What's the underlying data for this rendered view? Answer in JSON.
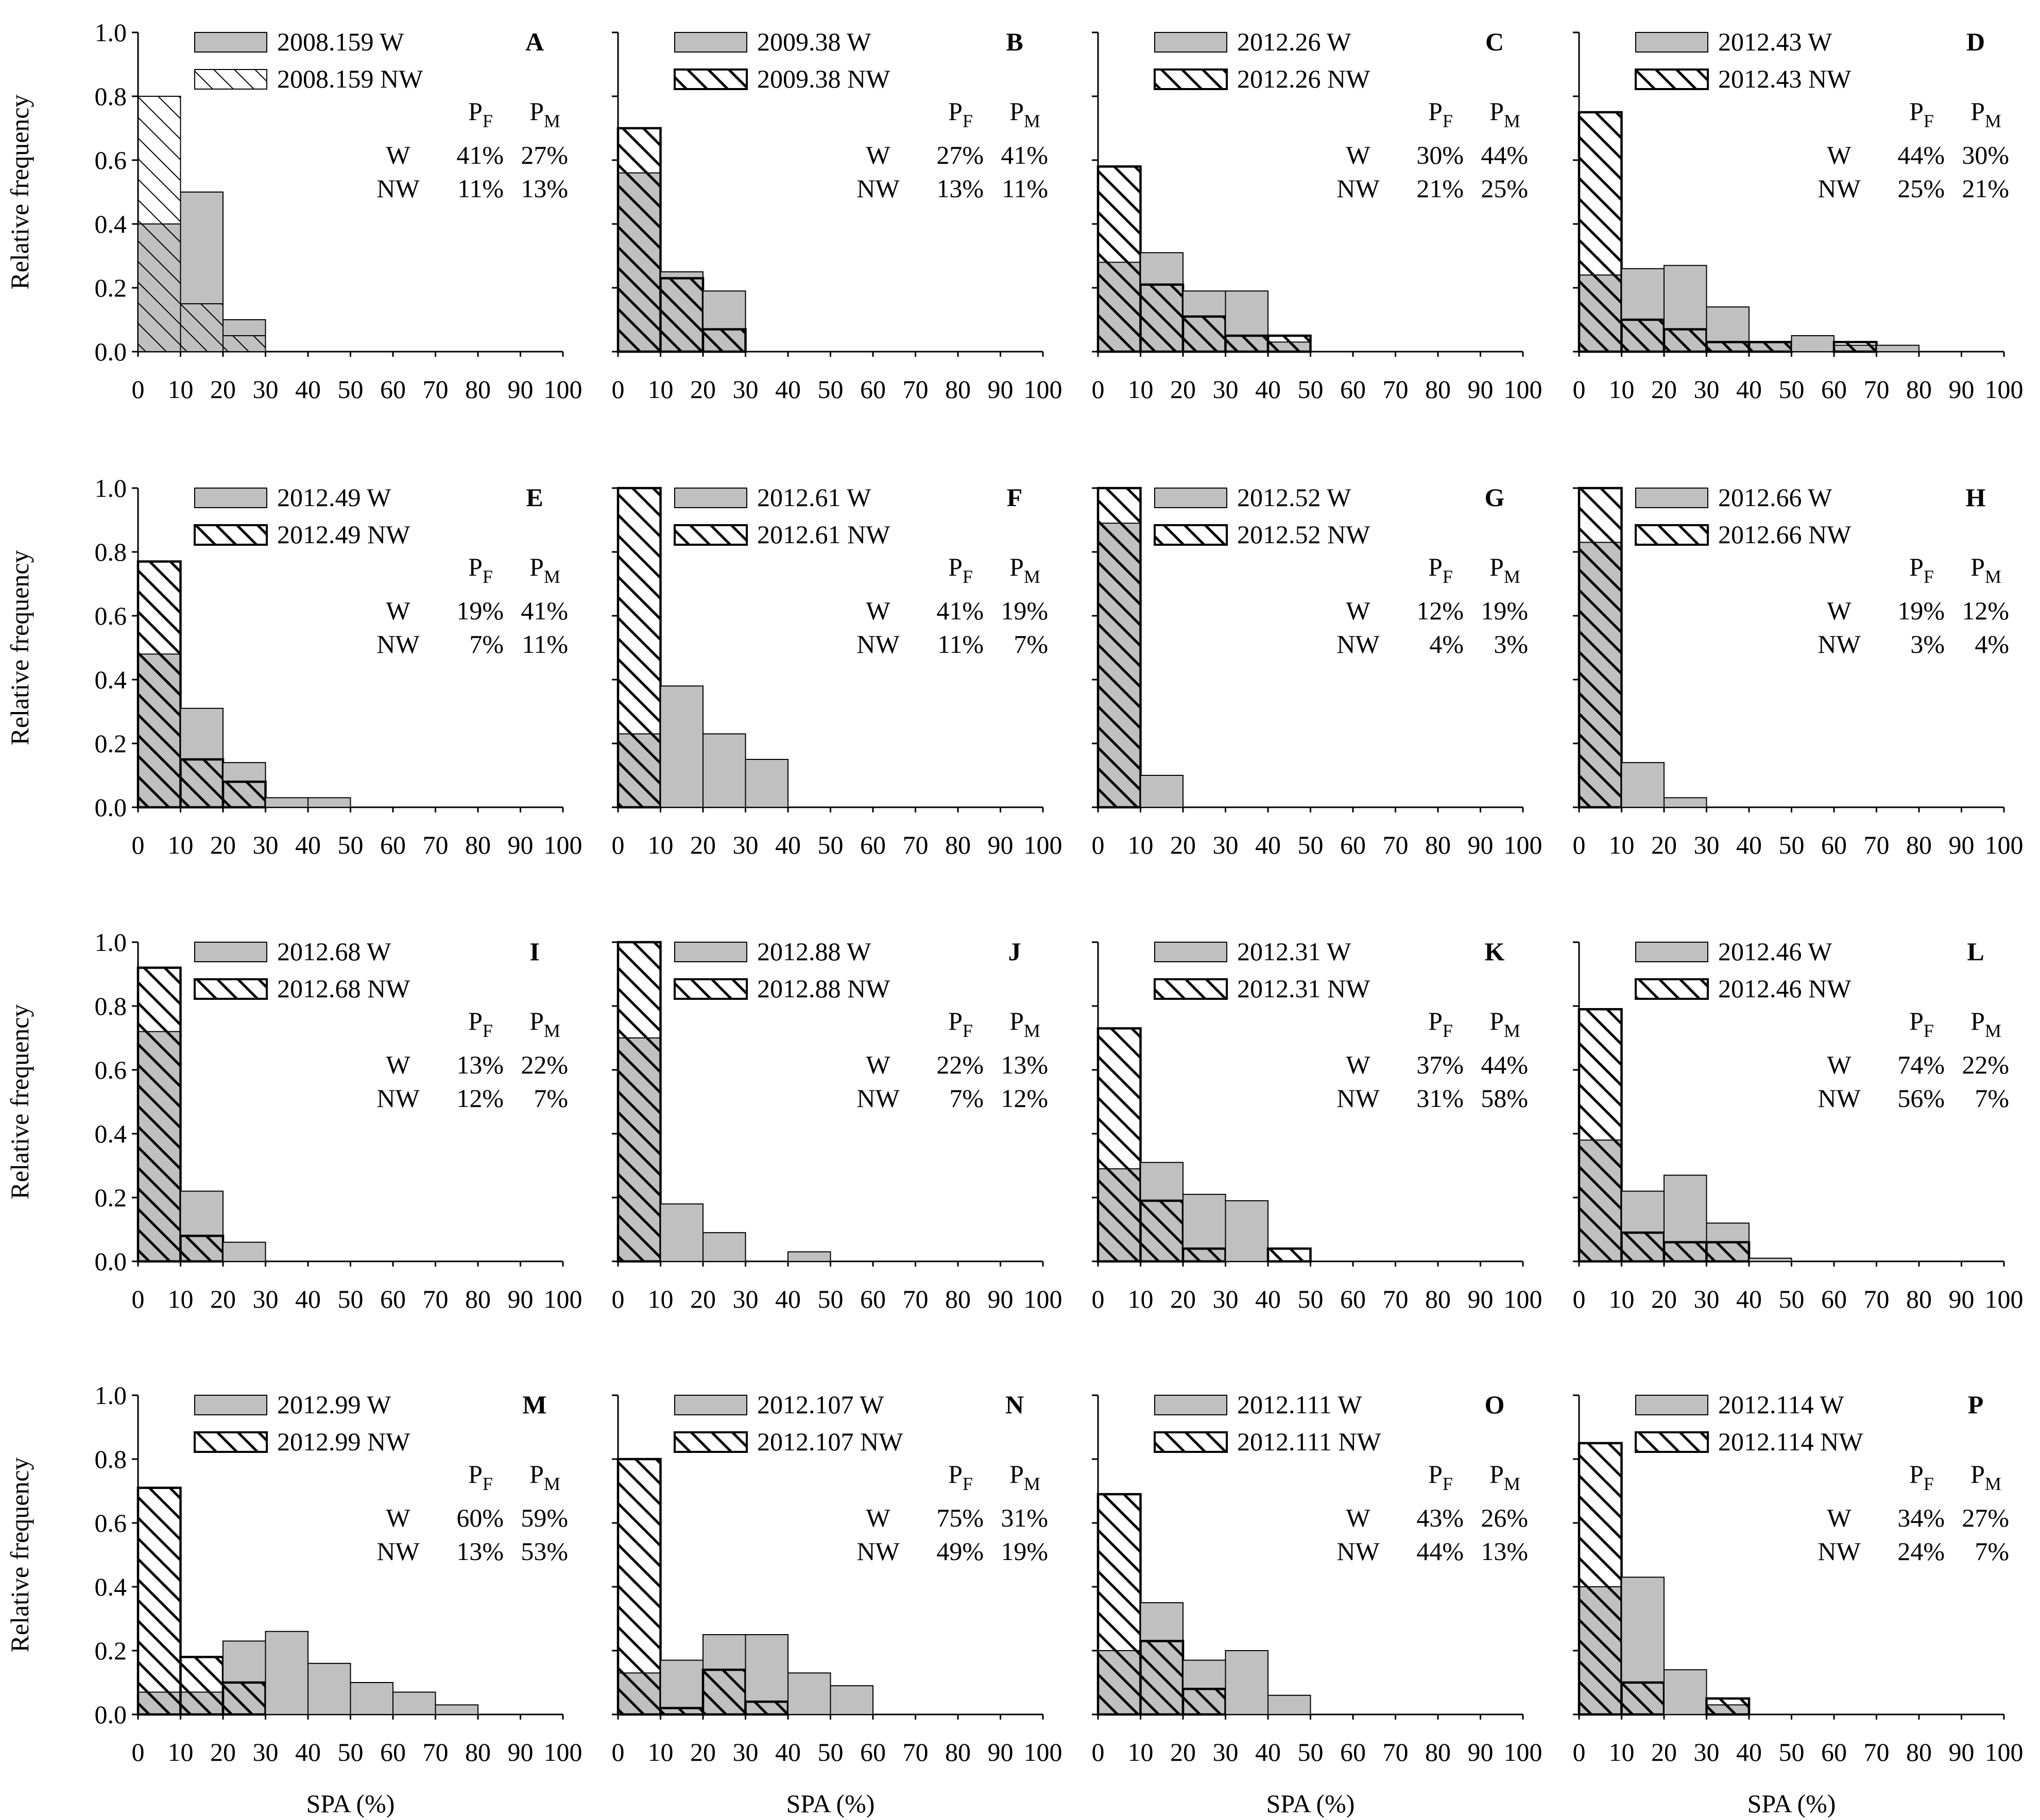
{
  "figure": {
    "ylabel": "Relative frequency",
    "xlabel": "SPA (%)",
    "yticks": [
      "0.0",
      "0.2",
      "0.4",
      "0.6",
      "0.8",
      "1.0"
    ],
    "xticks": [
      "0",
      "10",
      "20",
      "30",
      "40",
      "50",
      "60",
      "70",
      "80",
      "90",
      "100"
    ],
    "pf_label": "P",
    "pf_sub": "F",
    "pm_label": "P",
    "pm_sub": "M",
    "row_w": "W",
    "row_nw": "NW",
    "colors": {
      "w_fill": "#c0c0c0",
      "nw_fill": "#ffffff",
      "stroke": "#000000"
    }
  },
  "chart_data": [
    {
      "type": "bar",
      "panel": "A",
      "categories": [
        "0-10",
        "10-20",
        "20-30",
        "30-40",
        "40-50",
        "50-60",
        "60-70",
        "70-80",
        "80-90",
        "90-100"
      ],
      "series": [
        {
          "name": "2008.159 W",
          "values": [
            0.4,
            0.5,
            0.1,
            0,
            0,
            0,
            0,
            0,
            0,
            0
          ]
        },
        {
          "name": "2008.159 NW",
          "values": [
            0.8,
            0.15,
            0.05,
            0,
            0,
            0,
            0,
            0,
            0,
            0
          ]
        }
      ],
      "stats": {
        "w_pf": "41%",
        "w_pm": "27%",
        "nw_pf": "11%",
        "nw_pm": "13%"
      },
      "ylim": [
        0,
        1
      ],
      "xlim": [
        0,
        100
      ]
    },
    {
      "type": "bar",
      "panel": "B",
      "categories": [
        "0-10",
        "10-20",
        "20-30",
        "30-40",
        "40-50",
        "50-60",
        "60-70",
        "70-80",
        "80-90",
        "90-100"
      ],
      "series": [
        {
          "name": "2009.38 W",
          "values": [
            0.56,
            0.25,
            0.19,
            0,
            0,
            0,
            0,
            0,
            0,
            0
          ]
        },
        {
          "name": "2009.38 NW",
          "values": [
            0.7,
            0.23,
            0.07,
            0,
            0,
            0,
            0,
            0,
            0,
            0
          ]
        }
      ],
      "stats": {
        "w_pf": "27%",
        "w_pm": "41%",
        "nw_pf": "13%",
        "nw_pm": "11%"
      },
      "ylim": [
        0,
        1
      ],
      "xlim": [
        0,
        100
      ]
    },
    {
      "type": "bar",
      "panel": "C",
      "categories": [
        "0-10",
        "10-20",
        "20-30",
        "30-40",
        "40-50",
        "50-60",
        "60-70",
        "70-80",
        "80-90",
        "90-100"
      ],
      "series": [
        {
          "name": "2012.26 W",
          "values": [
            0.28,
            0.31,
            0.19,
            0.19,
            0.03,
            0,
            0,
            0,
            0,
            0
          ]
        },
        {
          "name": "2012.26 NW",
          "values": [
            0.58,
            0.21,
            0.11,
            0.05,
            0.05,
            0,
            0,
            0,
            0,
            0
          ]
        }
      ],
      "stats": {
        "w_pf": "30%",
        "w_pm": "44%",
        "nw_pf": "21%",
        "nw_pm": "25%"
      },
      "ylim": [
        0,
        1
      ],
      "xlim": [
        0,
        100
      ]
    },
    {
      "type": "bar",
      "panel": "D",
      "categories": [
        "0-10",
        "10-20",
        "20-30",
        "30-40",
        "40-50",
        "50-60",
        "60-70",
        "70-80",
        "80-90",
        "90-100"
      ],
      "series": [
        {
          "name": "2012.43 W",
          "values": [
            0.24,
            0.26,
            0.27,
            0.14,
            0.03,
            0.05,
            0.02,
            0.02,
            0,
            0
          ]
        },
        {
          "name": "2012.43 NW",
          "values": [
            0.75,
            0.1,
            0.07,
            0.03,
            0.03,
            0,
            0.03,
            0,
            0,
            0
          ]
        }
      ],
      "stats": {
        "w_pf": "44%",
        "w_pm": "30%",
        "nw_pf": "25%",
        "nw_pm": "21%"
      },
      "ylim": [
        0,
        1
      ],
      "xlim": [
        0,
        100
      ]
    },
    {
      "type": "bar",
      "panel": "E",
      "categories": [
        "0-10",
        "10-20",
        "20-30",
        "30-40",
        "40-50",
        "50-60",
        "60-70",
        "70-80",
        "80-90",
        "90-100"
      ],
      "series": [
        {
          "name": "2012.49 W",
          "values": [
            0.48,
            0.31,
            0.14,
            0.03,
            0.03,
            0,
            0,
            0,
            0,
            0
          ]
        },
        {
          "name": "2012.49 NW",
          "values": [
            0.77,
            0.15,
            0.08,
            0,
            0,
            0,
            0,
            0,
            0,
            0
          ]
        }
      ],
      "stats": {
        "w_pf": "19%",
        "w_pm": "41%",
        "nw_pf": "7%",
        "nw_pm": "11%"
      },
      "ylim": [
        0,
        1
      ],
      "xlim": [
        0,
        100
      ]
    },
    {
      "type": "bar",
      "panel": "F",
      "categories": [
        "0-10",
        "10-20",
        "20-30",
        "30-40",
        "40-50",
        "50-60",
        "60-70",
        "70-80",
        "80-90",
        "90-100"
      ],
      "series": [
        {
          "name": "2012.61 W",
          "values": [
            0.23,
            0.38,
            0.23,
            0.15,
            0,
            0,
            0,
            0,
            0,
            0
          ]
        },
        {
          "name": "2012.61 NW",
          "values": [
            1.0,
            0,
            0,
            0,
            0,
            0,
            0,
            0,
            0,
            0
          ]
        }
      ],
      "stats": {
        "w_pf": "41%",
        "w_pm": "19%",
        "nw_pf": "11%",
        "nw_pm": "7%"
      },
      "ylim": [
        0,
        1
      ],
      "xlim": [
        0,
        100
      ]
    },
    {
      "type": "bar",
      "panel": "G",
      "categories": [
        "0-10",
        "10-20",
        "20-30",
        "30-40",
        "40-50",
        "50-60",
        "60-70",
        "70-80",
        "80-90",
        "90-100"
      ],
      "series": [
        {
          "name": "2012.52 W",
          "values": [
            0.89,
            0.1,
            0,
            0,
            0,
            0,
            0,
            0,
            0,
            0
          ]
        },
        {
          "name": "2012.52 NW",
          "values": [
            1.0,
            0,
            0,
            0,
            0,
            0,
            0,
            0,
            0,
            0
          ]
        }
      ],
      "stats": {
        "w_pf": "12%",
        "w_pm": "19%",
        "nw_pf": "4%",
        "nw_pm": "3%"
      },
      "ylim": [
        0,
        1
      ],
      "xlim": [
        0,
        100
      ]
    },
    {
      "type": "bar",
      "panel": "H",
      "categories": [
        "0-10",
        "10-20",
        "20-30",
        "30-40",
        "40-50",
        "50-60",
        "60-70",
        "70-80",
        "80-90",
        "90-100"
      ],
      "series": [
        {
          "name": "2012.66 W",
          "values": [
            0.83,
            0.14,
            0.03,
            0,
            0,
            0,
            0,
            0,
            0,
            0
          ]
        },
        {
          "name": "2012.66 NW",
          "values": [
            1.0,
            0,
            0,
            0,
            0,
            0,
            0,
            0,
            0,
            0
          ]
        }
      ],
      "stats": {
        "w_pf": "19%",
        "w_pm": "12%",
        "nw_pf": "3%",
        "nw_pm": "4%"
      },
      "ylim": [
        0,
        1
      ],
      "xlim": [
        0,
        100
      ]
    },
    {
      "type": "bar",
      "panel": "I",
      "categories": [
        "0-10",
        "10-20",
        "20-30",
        "30-40",
        "40-50",
        "50-60",
        "60-70",
        "70-80",
        "80-90",
        "90-100"
      ],
      "series": [
        {
          "name": "2012.68 W",
          "values": [
            0.72,
            0.22,
            0.06,
            0,
            0,
            0,
            0,
            0,
            0,
            0
          ]
        },
        {
          "name": "2012.68 NW",
          "values": [
            0.92,
            0.08,
            0,
            0,
            0,
            0,
            0,
            0,
            0,
            0
          ]
        }
      ],
      "stats": {
        "w_pf": "13%",
        "w_pm": "22%",
        "nw_pf": "12%",
        "nw_pm": "7%"
      },
      "ylim": [
        0,
        1
      ],
      "xlim": [
        0,
        100
      ]
    },
    {
      "type": "bar",
      "panel": "J",
      "categories": [
        "0-10",
        "10-20",
        "20-30",
        "30-40",
        "40-50",
        "50-60",
        "60-70",
        "70-80",
        "80-90",
        "90-100"
      ],
      "series": [
        {
          "name": "2012.88 W",
          "values": [
            0.7,
            0.18,
            0.09,
            0,
            0.03,
            0,
            0,
            0,
            0,
            0
          ]
        },
        {
          "name": "2012.88 NW",
          "values": [
            1.0,
            0,
            0,
            0,
            0,
            0,
            0,
            0,
            0,
            0
          ]
        }
      ],
      "stats": {
        "w_pf": "22%",
        "w_pm": "13%",
        "nw_pf": "7%",
        "nw_pm": "12%"
      },
      "ylim": [
        0,
        1
      ],
      "xlim": [
        0,
        100
      ]
    },
    {
      "type": "bar",
      "panel": "K",
      "categories": [
        "0-10",
        "10-20",
        "20-30",
        "30-40",
        "40-50",
        "50-60",
        "60-70",
        "70-80",
        "80-90",
        "90-100"
      ],
      "series": [
        {
          "name": "2012.31 W",
          "values": [
            0.29,
            0.31,
            0.21,
            0.19,
            0,
            0,
            0,
            0,
            0,
            0
          ]
        },
        {
          "name": "2012.31 NW",
          "values": [
            0.73,
            0.19,
            0.04,
            0,
            0.04,
            0,
            0,
            0,
            0,
            0
          ]
        }
      ],
      "stats": {
        "w_pf": "37%",
        "w_pm": "44%",
        "nw_pf": "31%",
        "nw_pm": "58%"
      },
      "ylim": [
        0,
        1
      ],
      "xlim": [
        0,
        100
      ]
    },
    {
      "type": "bar",
      "panel": "L",
      "categories": [
        "0-10",
        "10-20",
        "20-30",
        "30-40",
        "40-50",
        "50-60",
        "60-70",
        "70-80",
        "80-90",
        "90-100"
      ],
      "series": [
        {
          "name": "2012.46 W",
          "values": [
            0.38,
            0.22,
            0.27,
            0.12,
            0.01,
            0,
            0,
            0,
            0,
            0
          ]
        },
        {
          "name": "2012.46 NW",
          "values": [
            0.79,
            0.09,
            0.06,
            0.06,
            0,
            0,
            0,
            0,
            0,
            0
          ]
        }
      ],
      "stats": {
        "w_pf": "74%",
        "w_pm": "22%",
        "nw_pf": "56%",
        "nw_pm": "7%"
      },
      "ylim": [
        0,
        1
      ],
      "xlim": [
        0,
        100
      ]
    },
    {
      "type": "bar",
      "panel": "M",
      "categories": [
        "0-10",
        "10-20",
        "20-30",
        "30-40",
        "40-50",
        "50-60",
        "60-70",
        "70-80",
        "80-90",
        "90-100"
      ],
      "series": [
        {
          "name": "2012.99 W",
          "values": [
            0.07,
            0.07,
            0.23,
            0.26,
            0.16,
            0.1,
            0.07,
            0.03,
            0,
            0
          ]
        },
        {
          "name": "2012.99 NW",
          "values": [
            0.71,
            0.18,
            0.1,
            0,
            0,
            0,
            0,
            0,
            0,
            0
          ]
        }
      ],
      "stats": {
        "w_pf": "60%",
        "w_pm": "59%",
        "nw_pf": "13%",
        "nw_pm": "53%"
      },
      "ylim": [
        0,
        1
      ],
      "xlim": [
        0,
        100
      ]
    },
    {
      "type": "bar",
      "panel": "N",
      "categories": [
        "0-10",
        "10-20",
        "20-30",
        "30-40",
        "40-50",
        "50-60",
        "60-70",
        "70-80",
        "80-90",
        "90-100"
      ],
      "series": [
        {
          "name": "2012.107 W",
          "values": [
            0.13,
            0.17,
            0.25,
            0.25,
            0.13,
            0.09,
            0,
            0,
            0,
            0
          ]
        },
        {
          "name": "2012.107 NW",
          "values": [
            0.8,
            0.02,
            0.14,
            0.04,
            0,
            0,
            0,
            0,
            0,
            0
          ]
        }
      ],
      "stats": {
        "w_pf": "75%",
        "w_pm": "31%",
        "nw_pf": "49%",
        "nw_pm": "19%"
      },
      "ylim": [
        0,
        1
      ],
      "xlim": [
        0,
        100
      ]
    },
    {
      "type": "bar",
      "panel": "O",
      "categories": [
        "0-10",
        "10-20",
        "20-30",
        "30-40",
        "40-50",
        "50-60",
        "60-70",
        "70-80",
        "80-90",
        "90-100"
      ],
      "series": [
        {
          "name": "2012.111 W",
          "values": [
            0.2,
            0.35,
            0.17,
            0.2,
            0.06,
            0,
            0,
            0,
            0,
            0
          ]
        },
        {
          "name": "2012.111 NW",
          "values": [
            0.69,
            0.23,
            0.08,
            0,
            0,
            0,
            0,
            0,
            0,
            0
          ]
        }
      ],
      "stats": {
        "w_pf": "43%",
        "w_pm": "26%",
        "nw_pf": "44%",
        "nw_pm": "13%"
      },
      "ylim": [
        0,
        1
      ],
      "xlim": [
        0,
        100
      ]
    },
    {
      "type": "bar",
      "panel": "P",
      "categories": [
        "0-10",
        "10-20",
        "20-30",
        "30-40",
        "40-50",
        "50-60",
        "60-70",
        "70-80",
        "80-90",
        "90-100"
      ],
      "series": [
        {
          "name": "2012.114 W",
          "values": [
            0.4,
            0.43,
            0.14,
            0.03,
            0,
            0,
            0,
            0,
            0,
            0
          ]
        },
        {
          "name": "2012.114 NW",
          "values": [
            0.85,
            0.1,
            0,
            0.05,
            0,
            0,
            0,
            0,
            0,
            0
          ]
        }
      ],
      "stats": {
        "w_pf": "34%",
        "w_pm": "27%",
        "nw_pf": "24%",
        "nw_pm": "7%"
      },
      "ylim": [
        0,
        1
      ],
      "xlim": [
        0,
        100
      ]
    }
  ]
}
